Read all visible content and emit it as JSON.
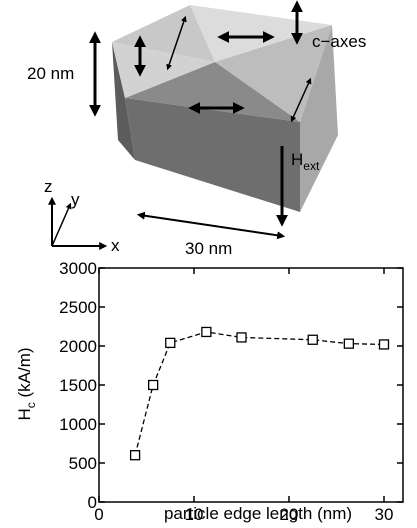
{
  "chart_data": {
    "type": "line",
    "x": [
      3.8,
      5.7,
      7.5,
      11.3,
      15,
      22.5,
      26.3,
      30
    ],
    "values": [
      600,
      1500,
      2040,
      2180,
      2110,
      2080,
      2030,
      2020
    ],
    "color": "#000000",
    "xlim": [
      0,
      32
    ],
    "ylim": [
      0,
      3000
    ],
    "xticks": [
      0,
      10,
      20,
      30
    ],
    "yticks": [
      0,
      500,
      1000,
      1500,
      2000,
      2500,
      3000
    ],
    "x_label": "particle edge length (nm)",
    "y_label": {
      "main": "H",
      "sub": "c",
      "rest": " (kA/m)"
    },
    "annotations": {
      "c_axes": "c−axes",
      "height": "20 nm",
      "edge": "30 nm",
      "field": {
        "main": "H",
        "sub": "ext"
      },
      "axis_z": "z",
      "axis_y": "y",
      "axis_x": "x"
    }
  }
}
